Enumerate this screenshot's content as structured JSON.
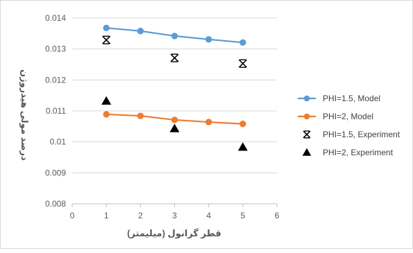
{
  "chart_data": {
    "type": "line",
    "title": "",
    "xlabel": "قطر گرانول (میلیمتر)",
    "ylabel": "درصد مولی هیدروژن",
    "xlim": [
      0,
      6
    ],
    "ylim": [
      0.008,
      0.014
    ],
    "x_ticks": [
      "0",
      "1",
      "2",
      "3",
      "4",
      "5",
      "6"
    ],
    "y_ticks": [
      "0.008",
      "0.009",
      "0.01",
      "0.011",
      "0.012",
      "0.013",
      "0.014"
    ],
    "grid": "horizontal",
    "legend_position": "right",
    "series": [
      {
        "name": "PHI=1.5, Model",
        "kind": "line-marker",
        "marker": "circle",
        "color": "#5b9bd5",
        "x": [
          1,
          2,
          3,
          4,
          5
        ],
        "y": [
          0.01368,
          0.01358,
          0.01342,
          0.01331,
          0.01321
        ]
      },
      {
        "name": "PHI=2, Model",
        "kind": "line-marker",
        "marker": "circle",
        "color": "#ed7d31",
        "x": [
          1,
          2,
          3,
          4,
          5
        ],
        "y": [
          0.01089,
          0.01084,
          0.01071,
          0.01064,
          0.01058
        ]
      },
      {
        "name": "PHI=1.5, Experiment",
        "kind": "scatter",
        "marker": "asterisk",
        "color": "#000000",
        "x": [
          1,
          3,
          5
        ],
        "y": [
          0.01329,
          0.01271,
          0.01253
        ]
      },
      {
        "name": "PHI=2, Experiment",
        "kind": "scatter",
        "marker": "triangle",
        "color": "#000000",
        "x": [
          1,
          3,
          5
        ],
        "y": [
          0.01132,
          0.01043,
          0.00983
        ]
      }
    ]
  }
}
